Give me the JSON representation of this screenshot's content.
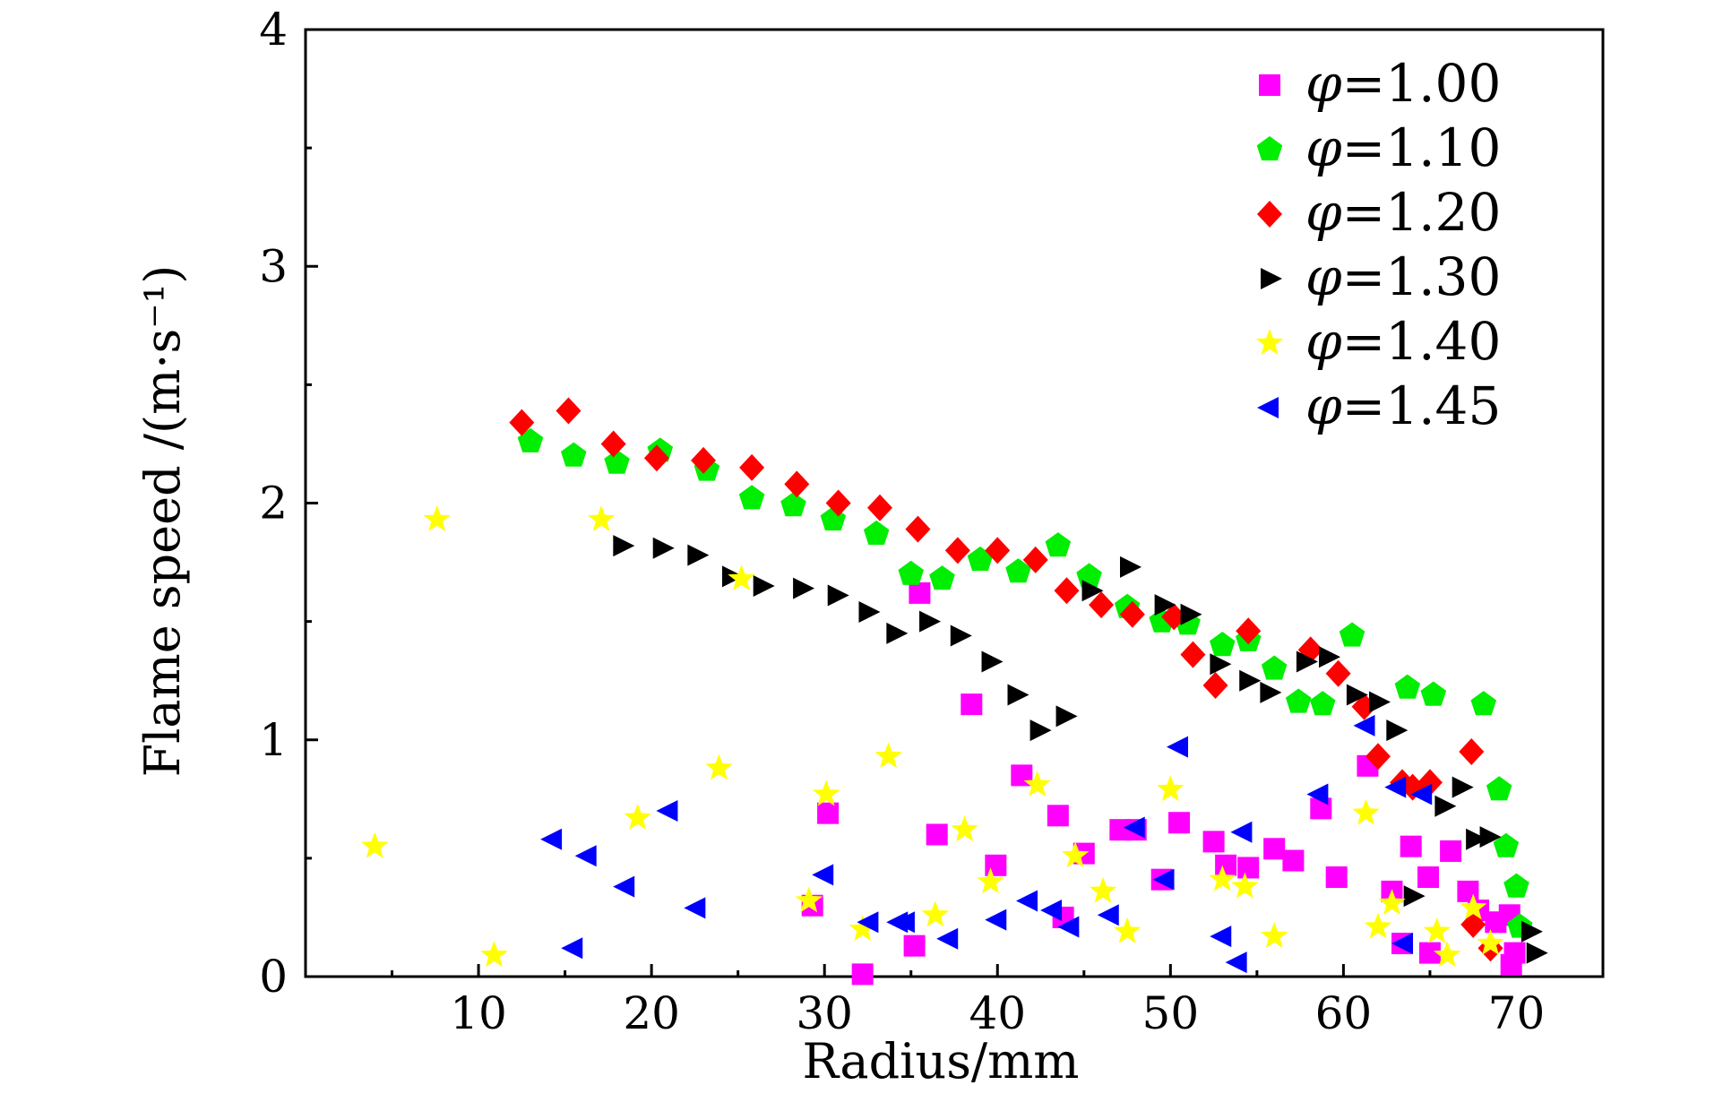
{
  "chart_data": {
    "type": "scatter",
    "xlabel": "Radius/mm",
    "ylabel": "Flame speed /(m·s⁻¹)",
    "xlim": [
      0,
      75
    ],
    "ylim": [
      0,
      4
    ],
    "xticks": [
      "10",
      "20",
      "30",
      "40",
      "50",
      "60",
      "70"
    ],
    "yticks": [
      "0",
      "1",
      "2",
      "3",
      "4"
    ],
    "grid": false,
    "legend_position": "top-right",
    "series": [
      {
        "name": "φ=1.00",
        "marker": "square",
        "color": "#ff00ff",
        "points": [
          [
            32.2,
            0.01
          ],
          [
            29.3,
            0.3
          ],
          [
            30.2,
            0.69
          ],
          [
            35.2,
            0.13
          ],
          [
            35.5,
            1.62
          ],
          [
            36.5,
            0.6
          ],
          [
            38.5,
            1.15
          ],
          [
            39.9,
            0.47
          ],
          [
            41.4,
            0.85
          ],
          [
            43.5,
            0.68
          ],
          [
            43.8,
            0.25
          ],
          [
            45.0,
            0.52
          ],
          [
            47.1,
            0.62
          ],
          [
            48.0,
            0.62
          ],
          [
            49.5,
            0.41
          ],
          [
            50.5,
            0.65
          ],
          [
            52.5,
            0.57
          ],
          [
            53.2,
            0.47
          ],
          [
            54.5,
            0.46
          ],
          [
            56.0,
            0.54
          ],
          [
            57.1,
            0.49
          ],
          [
            58.7,
            0.71
          ],
          [
            59.6,
            0.42
          ],
          [
            61.4,
            0.89
          ],
          [
            62.8,
            0.36
          ],
          [
            63.4,
            0.14
          ],
          [
            63.9,
            0.55
          ],
          [
            64.9,
            0.42
          ],
          [
            65.0,
            0.1
          ],
          [
            66.2,
            0.53
          ],
          [
            67.2,
            0.36
          ],
          [
            67.8,
            0.28
          ],
          [
            68.8,
            0.23
          ],
          [
            69.6,
            0.26
          ],
          [
            69.7,
            0.05
          ],
          [
            69.9,
            0.1
          ]
        ]
      },
      {
        "name": "φ=1.10",
        "marker": "pentagon",
        "color": "#00ee00",
        "points": [
          [
            13.0,
            2.26
          ],
          [
            15.5,
            2.2
          ],
          [
            18.0,
            2.17
          ],
          [
            20.5,
            2.22
          ],
          [
            23.2,
            2.14
          ],
          [
            25.8,
            2.02
          ],
          [
            28.2,
            1.99
          ],
          [
            30.5,
            1.93
          ],
          [
            33.0,
            1.87
          ],
          [
            35.0,
            1.7
          ],
          [
            36.8,
            1.68
          ],
          [
            39.0,
            1.76
          ],
          [
            41.2,
            1.71
          ],
          [
            43.5,
            1.82
          ],
          [
            45.3,
            1.69
          ],
          [
            47.5,
            1.56
          ],
          [
            49.5,
            1.5
          ],
          [
            51.0,
            1.49
          ],
          [
            53.0,
            1.4
          ],
          [
            54.5,
            1.42
          ],
          [
            56.0,
            1.3
          ],
          [
            57.4,
            1.16
          ],
          [
            58.8,
            1.15
          ],
          [
            60.5,
            1.44
          ],
          [
            63.7,
            1.22
          ],
          [
            65.2,
            1.19
          ],
          [
            68.1,
            1.15
          ],
          [
            69.0,
            0.79
          ],
          [
            69.4,
            0.55
          ],
          [
            70.0,
            0.38
          ],
          [
            70.2,
            0.21
          ]
        ]
      },
      {
        "name": "φ=1.20",
        "marker": "diamond",
        "color": "#ff0000",
        "points": [
          [
            12.5,
            2.34
          ],
          [
            15.2,
            2.39
          ],
          [
            17.8,
            2.25
          ],
          [
            20.3,
            2.19
          ],
          [
            23.0,
            2.18
          ],
          [
            25.8,
            2.15
          ],
          [
            28.4,
            2.08
          ],
          [
            30.8,
            2.0
          ],
          [
            33.2,
            1.98
          ],
          [
            35.4,
            1.89
          ],
          [
            37.7,
            1.8
          ],
          [
            40.0,
            1.8
          ],
          [
            42.2,
            1.76
          ],
          [
            44.0,
            1.63
          ],
          [
            46.0,
            1.57
          ],
          [
            47.8,
            1.53
          ],
          [
            50.2,
            1.52
          ],
          [
            51.3,
            1.36
          ],
          [
            52.6,
            1.23
          ],
          [
            54.5,
            1.46
          ],
          [
            58.1,
            1.38
          ],
          [
            59.7,
            1.28
          ],
          [
            61.2,
            1.14
          ],
          [
            62.0,
            0.93
          ],
          [
            63.4,
            0.82
          ],
          [
            64.0,
            0.8
          ],
          [
            65.0,
            0.82
          ],
          [
            67.4,
            0.95
          ],
          [
            67.5,
            0.22
          ],
          [
            68.5,
            0.12
          ]
        ]
      },
      {
        "name": "φ=1.30",
        "marker": "triangle-right",
        "color": "#000000",
        "points": [
          [
            18.3,
            1.82
          ],
          [
            20.6,
            1.81
          ],
          [
            22.6,
            1.78
          ],
          [
            24.6,
            1.69
          ],
          [
            26.4,
            1.65
          ],
          [
            28.7,
            1.64
          ],
          [
            30.7,
            1.61
          ],
          [
            32.5,
            1.54
          ],
          [
            34.1,
            1.45
          ],
          [
            36.0,
            1.5
          ],
          [
            37.8,
            1.44
          ],
          [
            39.6,
            1.33
          ],
          [
            41.1,
            1.19
          ],
          [
            42.4,
            1.04
          ],
          [
            43.9,
            1.1
          ],
          [
            45.4,
            1.63
          ],
          [
            47.6,
            1.73
          ],
          [
            49.6,
            1.57
          ],
          [
            51.1,
            1.53
          ],
          [
            52.8,
            1.32
          ],
          [
            54.5,
            1.25
          ],
          [
            55.7,
            1.2
          ],
          [
            57.8,
            1.33
          ],
          [
            59.1,
            1.35
          ],
          [
            60.7,
            1.19
          ],
          [
            62.0,
            1.16
          ],
          [
            63.0,
            1.04
          ],
          [
            64.0,
            0.34
          ],
          [
            65.8,
            0.72
          ],
          [
            66.8,
            0.8
          ],
          [
            67.6,
            0.58
          ],
          [
            68.4,
            0.59
          ],
          [
            70.8,
            0.19
          ],
          [
            71.1,
            0.1
          ]
        ]
      },
      {
        "name": "φ=1.40",
        "marker": "star",
        "color": "#ffff00",
        "points": [
          [
            4.0,
            0.55
          ],
          [
            7.6,
            1.93
          ],
          [
            10.9,
            0.09
          ],
          [
            17.1,
            1.93
          ],
          [
            19.2,
            0.67
          ],
          [
            23.9,
            0.88
          ],
          [
            25.2,
            1.68
          ],
          [
            29.1,
            0.32
          ],
          [
            30.1,
            0.77
          ],
          [
            32.2,
            0.2
          ],
          [
            33.7,
            0.93
          ],
          [
            36.4,
            0.26
          ],
          [
            38.1,
            0.62
          ],
          [
            39.6,
            0.4
          ],
          [
            42.3,
            0.81
          ],
          [
            44.5,
            0.51
          ],
          [
            46.1,
            0.36
          ],
          [
            47.5,
            0.19
          ],
          [
            50.0,
            0.79
          ],
          [
            53.0,
            0.41
          ],
          [
            54.3,
            0.38
          ],
          [
            56.0,
            0.17
          ],
          [
            61.3,
            0.69
          ],
          [
            62.0,
            0.21
          ],
          [
            62.8,
            0.31
          ],
          [
            65.4,
            0.19
          ],
          [
            66.0,
            0.09
          ],
          [
            67.5,
            0.29
          ],
          [
            68.5,
            0.14
          ]
        ]
      },
      {
        "name": "φ=1.45",
        "marker": "triangle-left",
        "color": "#0000ff",
        "points": [
          [
            14.3,
            0.58
          ],
          [
            15.5,
            0.12
          ],
          [
            16.3,
            0.51
          ],
          [
            18.5,
            0.38
          ],
          [
            21.0,
            0.7
          ],
          [
            22.6,
            0.29
          ],
          [
            30.0,
            0.43
          ],
          [
            32.6,
            0.23
          ],
          [
            34.3,
            0.23
          ],
          [
            34.7,
            0.23
          ],
          [
            37.2,
            0.16
          ],
          [
            40.0,
            0.24
          ],
          [
            41.8,
            0.32
          ],
          [
            43.2,
            0.28
          ],
          [
            44.2,
            0.21
          ],
          [
            46.5,
            0.26
          ],
          [
            48.0,
            0.63
          ],
          [
            49.7,
            0.41
          ],
          [
            50.5,
            0.97
          ],
          [
            53.0,
            0.17
          ],
          [
            53.9,
            0.06
          ],
          [
            54.2,
            0.61
          ],
          [
            58.6,
            0.77
          ],
          [
            61.3,
            1.06
          ],
          [
            63.1,
            0.8
          ],
          [
            63.5,
            0.14
          ],
          [
            64.6,
            0.77
          ]
        ]
      }
    ]
  }
}
